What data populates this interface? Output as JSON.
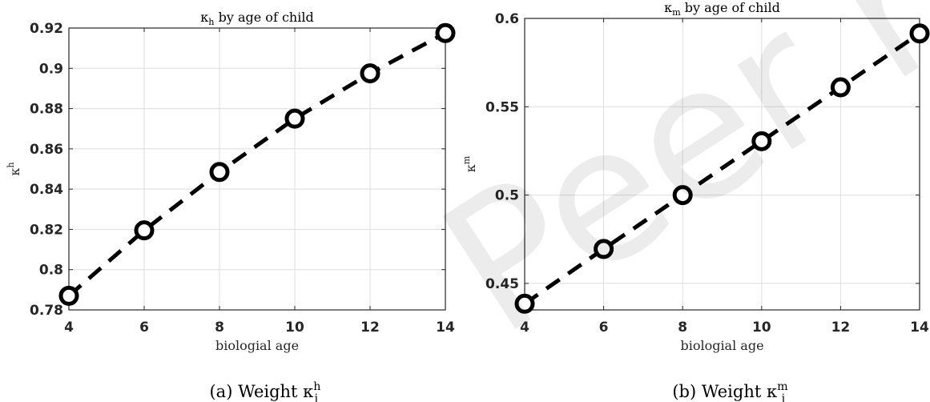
{
  "watermark": "Peer rev",
  "chart_data": [
    {
      "type": "line",
      "title": "κh by age of child",
      "xlabel": "biologial age",
      "ylabel": "κh",
      "caption": "(a) Weight κhj",
      "x": [
        4,
        6,
        8,
        10,
        12,
        14
      ],
      "xlim": [
        4,
        14
      ],
      "ylim": [
        0.78,
        0.92
      ],
      "xticks": [
        4,
        6,
        8,
        10,
        12,
        14
      ],
      "yticks": [
        0.78,
        0.8,
        0.82,
        0.84,
        0.86,
        0.88,
        0.9,
        0.92
      ],
      "ytick_labels": [
        "0.78",
        "0.8",
        "0.82",
        "0.84",
        "0.86",
        "0.88",
        "0.9",
        "0.92"
      ],
      "grid": true,
      "series": [
        {
          "values": [
            0.787,
            0.8195,
            0.8485,
            0.875,
            0.8975,
            0.9175
          ],
          "color": "#000000",
          "style": "dashed",
          "marker": "circle"
        }
      ]
    },
    {
      "type": "line",
      "title": "κm by age of child",
      "xlabel": "biologial age",
      "ylabel": "κm",
      "caption": "(b) Weight κmj",
      "x": [
        4,
        6,
        8,
        10,
        12,
        14
      ],
      "xlim": [
        4,
        14
      ],
      "ylim": [
        0.435,
        0.6
      ],
      "xticks": [
        4,
        6,
        8,
        10,
        12,
        14
      ],
      "yticks": [
        0.45,
        0.5,
        0.55,
        0.6
      ],
      "ytick_labels": [
        "0.45",
        "0.5",
        "0.55",
        "0.6"
      ],
      "grid": true,
      "series": [
        {
          "values": [
            0.4385,
            0.4695,
            0.5,
            0.5305,
            0.561,
            0.5915
          ],
          "color": "#000000",
          "style": "dashed",
          "marker": "circle"
        }
      ]
    }
  ]
}
